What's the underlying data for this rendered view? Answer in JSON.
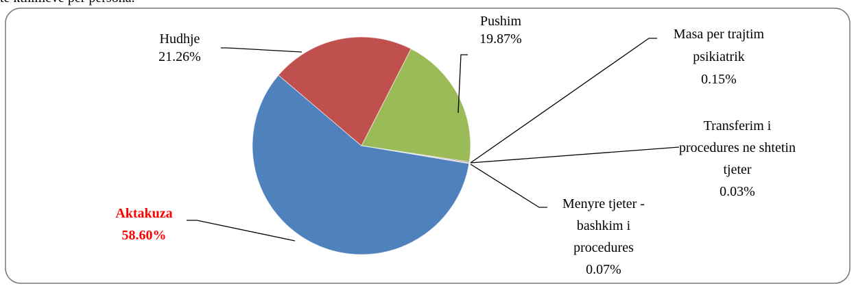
{
  "header_text": "te kthimeve per persona.",
  "chart_data": {
    "type": "pie",
    "categories": [
      "Pushim",
      "Masa per trajtim psikiatrik",
      "Transferim i procedures ne shtetin tjeter",
      "Menyre tjeter - bashkim i procedures",
      "Aktakuza",
      "Hudhje"
    ],
    "values": [
      19.87,
      0.15,
      0.03,
      0.07,
      58.6,
      21.26
    ],
    "value_labels": [
      "19.87%",
      "0.15%",
      "0.03%",
      "0.07%",
      "58.60%",
      "21.26%"
    ],
    "colors": [
      "#9bbb59",
      "#8064a2",
      "#4bacc6",
      "#f79646",
      "#4f81bd",
      "#c0504d"
    ]
  }
}
